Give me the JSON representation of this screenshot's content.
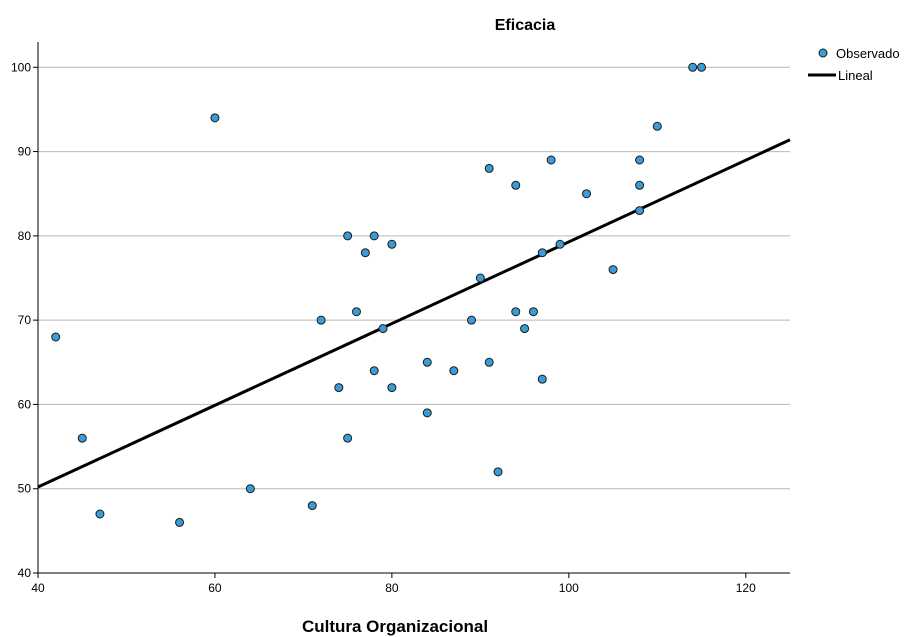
{
  "chart_data": {
    "type": "scatter",
    "title": "Eficacia",
    "xlabel": "Cultura Organizacional",
    "ylabel": "",
    "xlim": [
      40,
      125
    ],
    "ylim": [
      40,
      103
    ],
    "x_ticks": [
      "40",
      "60",
      "80",
      "100",
      "120"
    ],
    "y_ticks": [
      "40",
      "50",
      "60",
      "70",
      "80",
      "90",
      "100"
    ],
    "grid": "horizontal",
    "legend_position": "top-right",
    "series": [
      {
        "name": "Observado",
        "kind": "points",
        "color": "#3b9ad8",
        "points": [
          [
            42,
            68
          ],
          [
            45,
            56
          ],
          [
            47,
            47
          ],
          [
            56,
            46
          ],
          [
            60,
            94
          ],
          [
            64,
            50
          ],
          [
            71,
            48
          ],
          [
            72,
            70
          ],
          [
            74,
            62
          ],
          [
            75,
            80
          ],
          [
            75,
            56
          ],
          [
            76,
            71
          ],
          [
            77,
            78
          ],
          [
            78,
            80
          ],
          [
            78,
            64
          ],
          [
            79,
            69
          ],
          [
            80,
            79
          ],
          [
            80,
            62
          ],
          [
            84,
            65
          ],
          [
            84,
            59
          ],
          [
            87,
            64
          ],
          [
            89,
            70
          ],
          [
            90,
            75
          ],
          [
            91,
            88
          ],
          [
            91,
            65
          ],
          [
            92,
            52
          ],
          [
            94,
            86
          ],
          [
            94,
            71
          ],
          [
            95,
            69
          ],
          [
            96,
            71
          ],
          [
            97,
            78
          ],
          [
            97,
            63
          ],
          [
            98,
            89
          ],
          [
            99,
            79
          ],
          [
            102,
            85
          ],
          [
            105,
            76
          ],
          [
            108,
            89
          ],
          [
            108,
            86
          ],
          [
            108,
            83
          ],
          [
            110,
            93
          ],
          [
            114,
            100
          ],
          [
            115,
            100
          ]
        ]
      },
      {
        "name": "Lineal",
        "kind": "line",
        "color": "#000000",
        "points": [
          [
            40,
            50.2
          ],
          [
            125,
            91.4
          ]
        ]
      }
    ]
  }
}
